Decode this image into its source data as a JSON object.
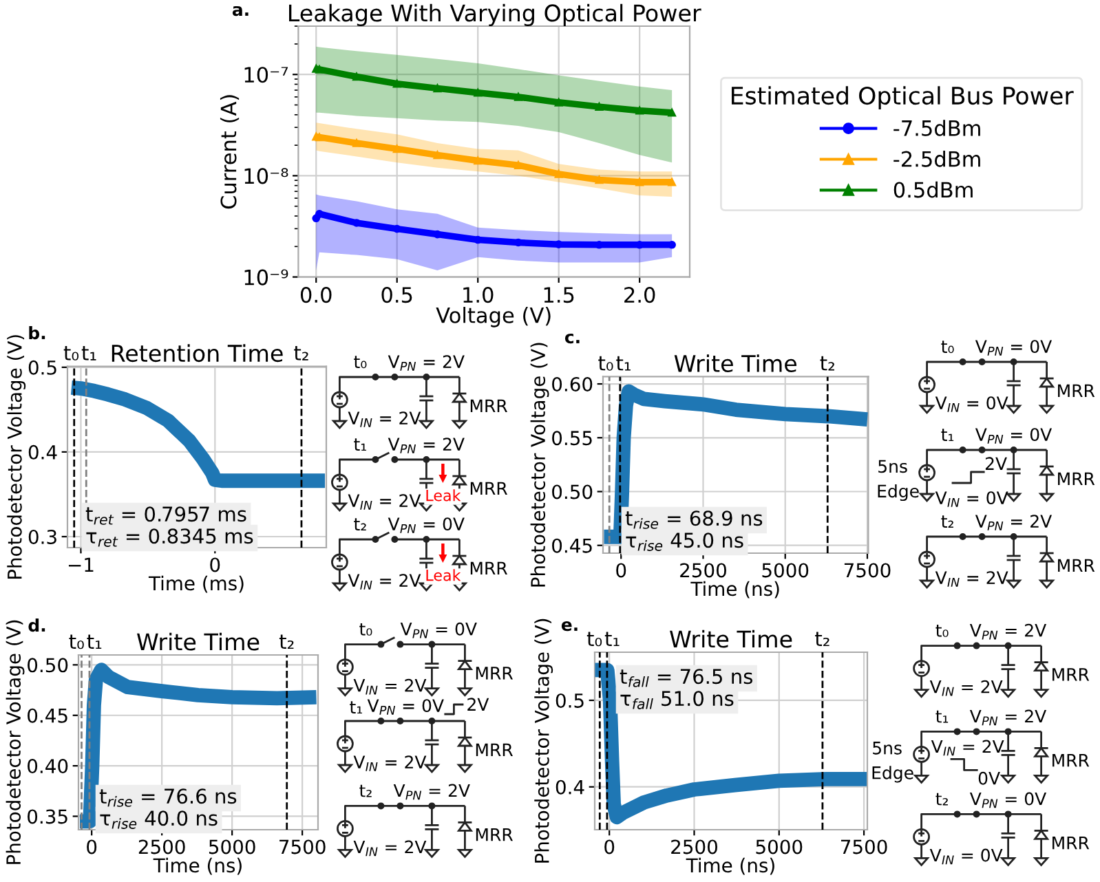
{
  "chart_data": [
    {
      "type": "line",
      "title": "Leakage With Varying Optical Power",
      "xlabel": "Voltage (V)",
      "ylabel": "Current (A)",
      "legend_title": "Estimated Optical Bus Power",
      "legend": "right",
      "log": "y",
      "grid": true,
      "xlim": [
        -0.11,
        2.31
      ],
      "ylim": [
        1e-09,
        3e-07
      ],
      "xticks": [
        {
          "value": 0,
          "label": "0.0"
        },
        0.5,
        {
          "value": 1,
          "label": "1.0"
        },
        1.5,
        {
          "value": 2,
          "label": "2.0"
        }
      ],
      "yticks": [
        {
          "value": 1e-09,
          "label": "10⁻⁹"
        },
        {
          "value": 1e-08,
          "label": "10⁻⁸"
        },
        {
          "value": 1e-07,
          "label": "10⁻⁷"
        }
      ],
      "annotations": [
        "a."
      ],
      "x": [
        0,
        0.02,
        0.25,
        0.5,
        0.75,
        1.0,
        1.25,
        1.5,
        1.75,
        2.0,
        2.2
      ],
      "series": [
        {
          "name": "-7.5dBm",
          "color": "#0000ff",
          "marker": "circle",
          "values": [
            3.8e-09,
            4.2e-09,
            3.42e-09,
            2.99e-09,
            2.64e-09,
            2.33e-09,
            2.19e-09,
            2.1e-09,
            2.08e-09,
            2.08e-09,
            2.08e-09
          ],
          "lower": [
            1.16e-09,
            1.75e-09,
            1.65e-09,
            1.5e-09,
            1.16e-09,
            1.57e-09,
            1.45e-09,
            1.39e-09,
            1.39e-09,
            1.39e-09,
            1.57e-09
          ],
          "upper": [
            6.55e-09,
            6.4e-09,
            5.6e-09,
            4.66e-09,
            4.2e-09,
            3.08e-09,
            2.9e-09,
            2.78e-09,
            2.7e-09,
            2.64e-09,
            2.64e-09
          ]
        },
        {
          "name": "-2.5dBm",
          "color": "#ffa500",
          "marker": "triangle",
          "values": [
            2.43e-08,
            2.4e-08,
            2.1e-08,
            1.84e-08,
            1.6e-08,
            1.41e-08,
            1.27e-08,
            1.04e-08,
            9.1e-09,
            8.65e-09,
            8.65e-09
          ],
          "lower": [
            1.78e-08,
            1.75e-08,
            1.55e-08,
            1.35e-08,
            1.2e-08,
            1.1e-08,
            1e-08,
            8.65e-09,
            7.5e-09,
            6.4e-09,
            6.2e-09
          ],
          "upper": [
            3.35e-08,
            3.3e-08,
            2.9e-08,
            2.56e-08,
            2.1e-08,
            1.84e-08,
            1.78e-08,
            1.31e-08,
            1.15e-08,
            1.1e-08,
            1.1e-08
          ]
        },
        {
          "name": "0.5dBm",
          "color": "#008000",
          "marker": "triangle",
          "values": [
            1.14e-07,
            1.12e-07,
            9.5e-08,
            8.1e-08,
            7.3e-08,
            6.6e-08,
            6e-08,
            5.3e-08,
            4.8e-08,
            4.4e-08,
            4.2e-08
          ],
          "lower": [
            4.2e-08,
            4.2e-08,
            3.9e-08,
            3.7e-08,
            3.5e-08,
            3.4e-08,
            3.1e-08,
            2.7e-08,
            2.1e-08,
            1.6e-08,
            1.35e-08
          ],
          "upper": [
            1.88e-07,
            1.86e-07,
            1.7e-07,
            1.56e-07,
            1.42e-07,
            1.29e-07,
            1.13e-07,
            9.8e-08,
            8.6e-08,
            7.6e-08,
            7e-08
          ]
        }
      ]
    },
    {
      "type": "line",
      "title": "Retention Time",
      "xlabel": "Time (ms)",
      "ylabel": "Photodetector Voltage (V)",
      "grid": true,
      "xlim": [
        -1.1,
        0.83
      ],
      "ylim": [
        0.287,
        0.501
      ],
      "xticks": [
        {
          "value": -1,
          "label": "−1"
        },
        0
      ],
      "yticks": [
        0.3,
        0.4,
        0.5
      ],
      "ref_lines": [
        {
          "axis": "x",
          "value": -1.05,
          "label": "t₀",
          "color": "#000000",
          "line_style": "dashed"
        },
        {
          "axis": "x",
          "value": -0.96,
          "label": "t₁",
          "color": "#808080",
          "line_style": "dashed"
        },
        {
          "axis": "x",
          "value": 0.645,
          "label": "t₂",
          "color": "#000000",
          "line_style": "dashed"
        }
      ],
      "annotations": [
        "b.",
        "t$_{ret}$ = 0.7957 ms",
        "τ$_{ret}$ = 0.8345 ms"
      ],
      "x": [
        -1.07,
        -1.0,
        -0.9,
        -0.8,
        -0.67,
        -0.51,
        -0.35,
        -0.19,
        -0.09,
        -0.02,
        0.0,
        0.05,
        0.2,
        0.4,
        0.6,
        0.82
      ],
      "series": [
        {
          "color": "#1f77b4",
          "values": [
            0.476,
            0.475,
            0.472,
            0.468,
            0.462,
            0.452,
            0.437,
            0.413,
            0.392,
            0.375,
            0.367,
            0.366,
            0.366,
            0.366,
            0.366,
            0.366
          ]
        }
      ]
    },
    {
      "type": "other",
      "annotations": [
        "t₀",
        "V$_{PN}$ = 2V",
        "V$_{IN}$ = 2V",
        "MRR",
        "t₁",
        "V$_{PN}$ = 2V",
        "V$_{IN}$ = 2V",
        "MRR",
        "Leak",
        "t₂",
        "V$_{PN}$ = 0V",
        "V$_{IN}$ = 2V",
        "MRR",
        "Leak"
      ]
    },
    {
      "type": "line",
      "title": "Write Time",
      "xlabel": "Time (ns)",
      "ylabel": "Photodetector Voltage (V)",
      "grid": true,
      "xlim": [
        -550,
        7530
      ],
      "ylim": [
        0.4428,
        0.6068
      ],
      "xticks": [
        0,
        2500,
        5000,
        7500
      ],
      "yticks": [
        0.45,
        {
          "value": 0.5,
          "label": "0.50"
        },
        0.55,
        {
          "value": 0.6,
          "label": "0.60"
        }
      ],
      "ref_lines": [
        {
          "axis": "x",
          "value": -357,
          "label": "t₀",
          "color": "#808080",
          "line_style": "dashed"
        },
        {
          "axis": "x",
          "value": -30,
          "label": "t₁",
          "color": "#000000",
          "line_style": "dashed"
        },
        {
          "axis": "x",
          "value": 6290,
          "label": "t₂",
          "color": "#000000",
          "line_style": "dashed"
        }
      ],
      "annotations": [
        "c.",
        "t$_{rise}$ = 68.9 ns",
        "τ$_{rise}$ 45.0 ns"
      ],
      "x": [
        -520,
        -200,
        -20,
        30,
        80,
        150,
        235,
        400,
        700,
        1330,
        2500,
        3500,
        5000,
        6300,
        7500
      ],
      "series": [
        {
          "color": "#1f77b4",
          "values": [
            0.458,
            0.458,
            0.458,
            0.5,
            0.55,
            0.58,
            0.593,
            0.59,
            0.586,
            0.584,
            0.581,
            0.576,
            0.572,
            0.57,
            0.567
          ]
        }
      ]
    },
    {
      "type": "other",
      "annotations": [
        "t₀",
        "V$_{PN}$ = 0V",
        "V$_{IN}$ = 0V",
        "MRR",
        "t₁",
        "V$_{PN}$ = 0V",
        "5ns",
        "Edge",
        "2V",
        "V$_{IN}$ = 0V",
        "MRR",
        "t₂",
        "V$_{PN}$ = 2V",
        "V$_{IN}$ = 2V",
        "MRR"
      ]
    },
    {
      "type": "line",
      "title": "Write Time",
      "xlabel": "Time (ns)",
      "ylabel": "Photodetector Voltage (V)",
      "grid": true,
      "xlim": [
        -470,
        8060
      ],
      "ylim": [
        0.3367,
        0.5098
      ],
      "xticks": [
        0,
        2500,
        5000,
        7500
      ],
      "yticks": [
        0.35,
        {
          "value": 0.4,
          "label": "0.40"
        },
        0.45,
        {
          "value": 0.5,
          "label": "0.50"
        }
      ],
      "ref_lines": [
        {
          "axis": "x",
          "value": -360,
          "label": "t₀",
          "color": "#808080",
          "line_style": "dashed"
        },
        {
          "axis": "x",
          "value": -78,
          "label": "t₁",
          "color": "#808080",
          "line_style": "dashed"
        },
        {
          "axis": "x",
          "value": 6950,
          "label": "t₂",
          "color": "#000000",
          "line_style": "dashed"
        }
      ],
      "annotations": [
        "d.",
        "t$_{rise}$ = 76.6 ns",
        "τ$_{rise}$ 40.0 ns"
      ],
      "x": [
        -420,
        -200,
        -60,
        20,
        80,
        150,
        344,
        600,
        1283,
        2500,
        3787,
        5000,
        6600,
        8000
      ],
      "series": [
        {
          "color": "#1f77b4",
          "values": [
            0.345,
            0.345,
            0.345,
            0.4,
            0.46,
            0.485,
            0.495,
            0.488,
            0.478,
            0.474,
            0.47,
            0.468,
            0.467,
            0.468
          ]
        }
      ]
    },
    {
      "type": "other",
      "annotations": [
        "t₀",
        "V$_{PN}$ = 0V",
        "V$_{IN}$ = 2V",
        "MRR",
        "t₁",
        "V$_{PN}$ = 0V",
        "2V",
        "V$_{IN}$ = 2V",
        "MRR",
        "t₂",
        "V$_{PN}$ = 2V",
        "V$_{IN}$ = 2V",
        "MRR"
      ]
    },
    {
      "type": "line",
      "title": "Write Time",
      "xlabel": "Time (ns)",
      "ylabel": "Photodetector Voltage (V)",
      "grid": true,
      "xlim": [
        -430,
        7600
      ],
      "ylim": [
        0.3505,
        0.5556
      ],
      "xticks": [
        0,
        2500,
        5000,
        7500
      ],
      "yticks": [
        0.4,
        0.5
      ],
      "ref_lines": [
        {
          "axis": "x",
          "value": -282,
          "label": "t₀",
          "color": "#000000",
          "line_style": "dashed"
        },
        {
          "axis": "x",
          "value": -67,
          "label": "t₁",
          "color": "#000000",
          "line_style": "dashed"
        },
        {
          "axis": "x",
          "value": 6280,
          "label": "t₂",
          "color": "#000000",
          "line_style": "dashed"
        }
      ],
      "annotations": [
        "e.",
        "t$_{fall}$ = 76.5 ns",
        "τ$_{fall}$ 51.0 ns"
      ],
      "x": [
        -420,
        -200,
        -60,
        20,
        80,
        130,
        220,
        400,
        1020,
        1690,
        2500,
        3700,
        5000,
        6390,
        7580
      ],
      "series": [
        {
          "color": "#1f77b4",
          "values": [
            0.535,
            0.535,
            0.535,
            0.5,
            0.43,
            0.38,
            0.365,
            0.37,
            0.382,
            0.39,
            0.397,
            0.402,
            0.407,
            0.409,
            0.409
          ]
        }
      ]
    },
    {
      "type": "other",
      "annotations": [
        "t₀",
        "V$_{PN}$ = 2V",
        "V$_{IN}$ = 2V",
        "MRR",
        "t₁",
        "V$_{PN}$ = 2V",
        "5ns",
        "Edge",
        "V$_{IN}$ = 2V",
        "0V",
        "MRR",
        "t₂",
        "V$_{PN}$ = 0V",
        "V$_{IN}$ = 0V",
        "MRR"
      ]
    }
  ]
}
